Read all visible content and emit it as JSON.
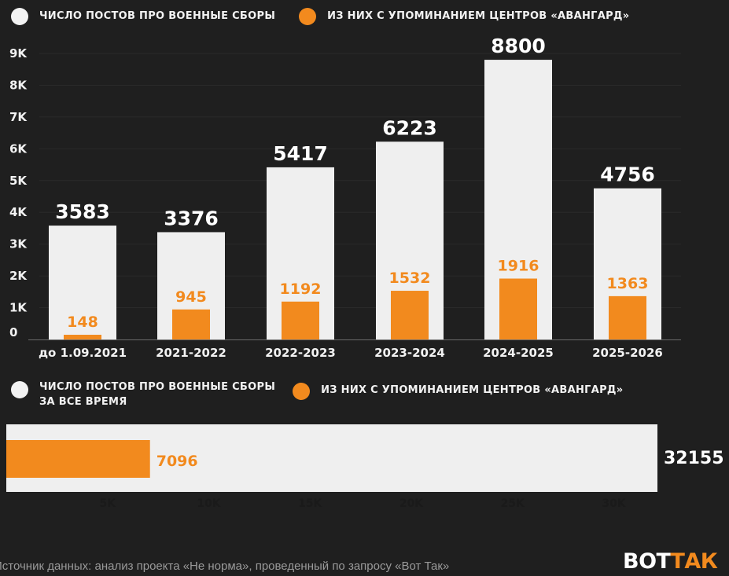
{
  "colors": {
    "background": "#1f1f1f",
    "total": "#efefef",
    "avangard": "#f28a1e",
    "text": "#ffffff",
    "axis_text": "#f2f2f2",
    "source_text": "#9a9a9a"
  },
  "legend_top": {
    "total": "ЧИСЛО ПОСТОВ ПРО ВОЕННЫЕ СБОРЫ",
    "avangard": "ИЗ НИХ С УПОМИНАНИЕМ ЦЕНТРОВ «АВАНГАРД»"
  },
  "legend_bottom": {
    "total_line1": "ЧИСЛО ПОСТОВ ПРО ВОЕННЫЕ СБОРЫ",
    "total_line2": "ЗА ВСЕ ВРЕМЯ",
    "avangard": "ИЗ НИХ С УПОМИНАНИЕМ ЦЕНТРОВ «АВАНГАРД»"
  },
  "chart_data": [
    {
      "type": "bar",
      "categories": [
        "до 1.09.2021",
        "2021-2022",
        "2022-2023",
        "2023-2024",
        "2024-2025",
        "2025-2026"
      ],
      "series": [
        {
          "name": "ЧИСЛО ПОСТОВ ПРО ВОЕННЫЕ СБОРЫ",
          "color": "#efefef",
          "values": [
            3583,
            3376,
            5417,
            6223,
            8800,
            4756
          ]
        },
        {
          "name": "ИЗ НИХ С УПОМИНАНИЕМ ЦЕНТРОВ «АВАНГАРД»",
          "color": "#f28a1e",
          "values": [
            148,
            945,
            1192,
            1532,
            1916,
            1363
          ]
        }
      ],
      "yticks": [
        "0",
        "1K",
        "2K",
        "3K",
        "4K",
        "5K",
        "6K",
        "7K",
        "8K",
        "9K"
      ],
      "ylim": [
        0,
        9000
      ],
      "grid": true,
      "legend": "top"
    },
    {
      "type": "bar",
      "orientation": "horizontal",
      "series": [
        {
          "name": "ЧИСЛО ПОСТОВ ПРО ВОЕННЫЕ СБОРЫ ЗА ВСЕ ВРЕМЯ",
          "color": "#efefef",
          "value": 32155,
          "label": "32155"
        },
        {
          "name": "ИЗ НИХ С УПОМИНАНИЕМ ЦЕНТРОВ «АВАНГАРД»",
          "color": "#f28a1e",
          "value": 7096,
          "label": "7096"
        }
      ],
      "xticks": [
        "5K",
        "10K",
        "15K",
        "20K",
        "25K",
        "30K"
      ],
      "xtick_values": [
        5000,
        10000,
        15000,
        20000,
        25000,
        30000
      ],
      "xlim": [
        0,
        32155
      ],
      "legend": "top"
    }
  ],
  "footer": {
    "source": "Источник данных: анализ проекта «Не норма», проведенный по запросу «Вот Так»",
    "logo_part1": "ВОТ",
    "logo_part2": "ТАК"
  }
}
